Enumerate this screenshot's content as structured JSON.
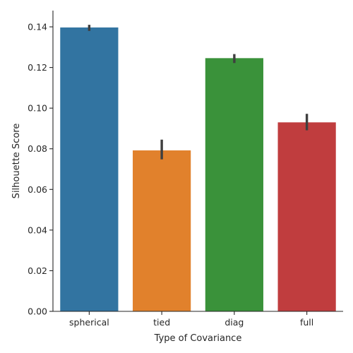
{
  "chart_data": {
    "type": "bar",
    "categories": [
      "spherical",
      "tied",
      "diag",
      "full"
    ],
    "values": [
      0.1397,
      0.0792,
      0.1246,
      0.093
    ],
    "error_low": [
      0.138,
      0.0748,
      0.1222,
      0.0891
    ],
    "error_high": [
      0.141,
      0.0845,
      0.1266,
      0.0972
    ],
    "colors": [
      "#3274a1",
      "#e1812c",
      "#3a923a",
      "#c03d3e"
    ],
    "error_color": "#3f3f3f",
    "xlabel": "Type of Covariance",
    "ylabel": "Silhouette Score",
    "ylim": [
      0,
      0.148
    ],
    "yticks": [
      "0.00",
      "0.02",
      "0.04",
      "0.06",
      "0.08",
      "0.10",
      "0.12",
      "0.14"
    ],
    "grid": false,
    "legend": "none"
  }
}
